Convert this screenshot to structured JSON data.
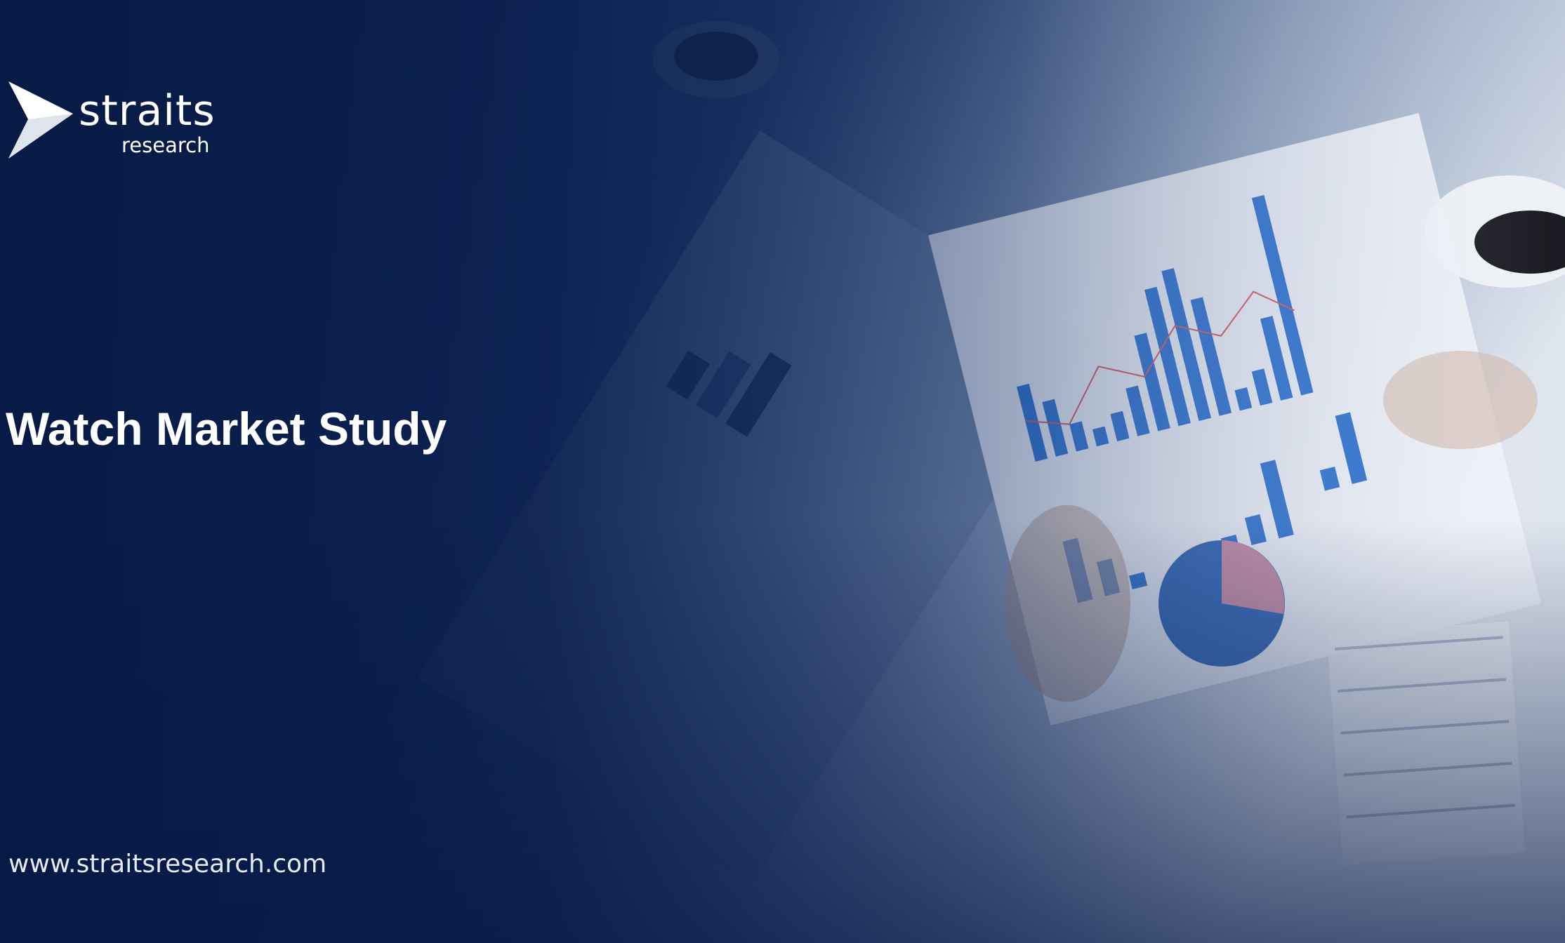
{
  "logo": {
    "name": "straits",
    "tagline": "research"
  },
  "title": "Watch Market Study",
  "url": "www.straitsresearch.com"
}
